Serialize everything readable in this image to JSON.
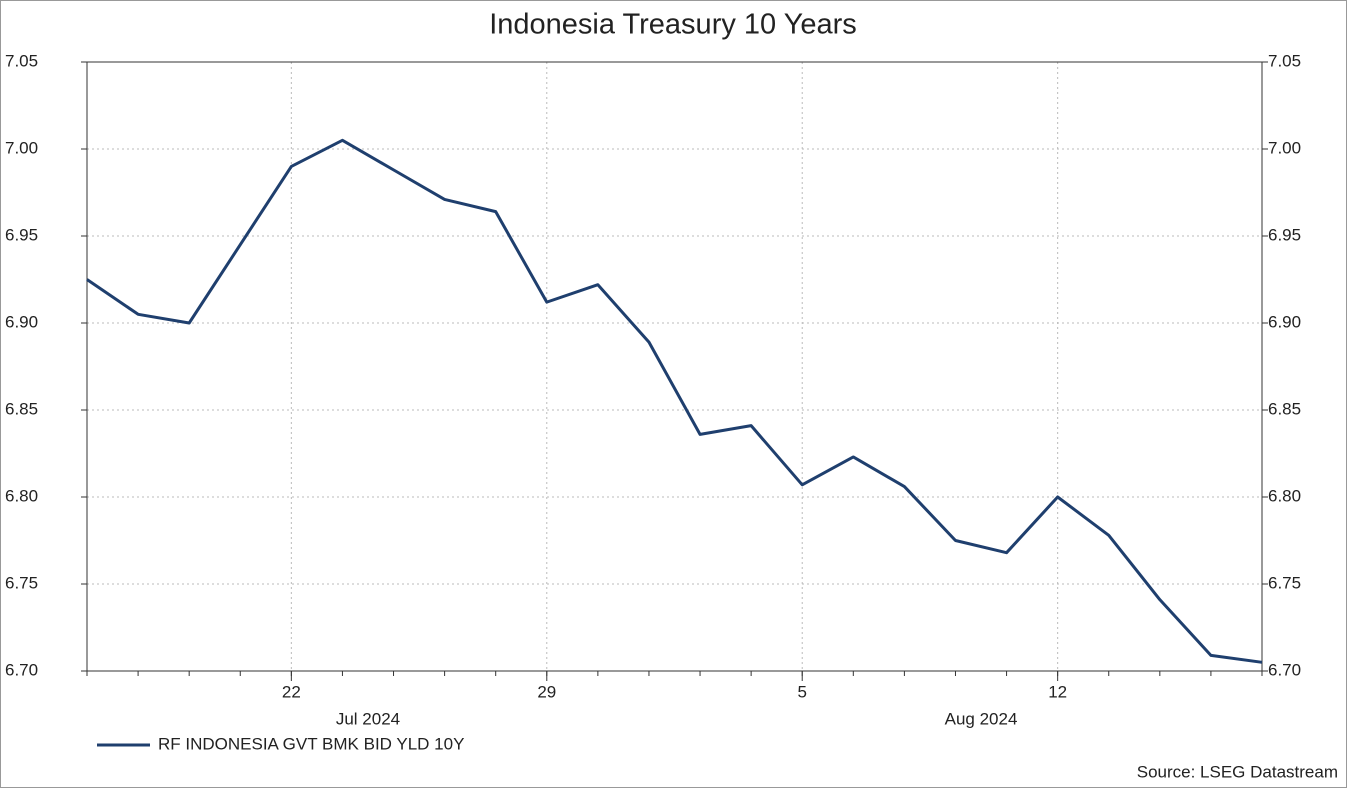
{
  "chart_data": {
    "type": "line",
    "title": "Indonesia Treasury 10 Years",
    "x": [
      "2024-07-16",
      "2024-07-17",
      "2024-07-18",
      "2024-07-19",
      "2024-07-22",
      "2024-07-23",
      "2024-07-24",
      "2024-07-25",
      "2024-07-26",
      "2024-07-29",
      "2024-07-30",
      "2024-07-31",
      "2024-08-01",
      "2024-08-02",
      "2024-08-05",
      "2024-08-06",
      "2024-08-07",
      "2024-08-08",
      "2024-08-09",
      "2024-08-12",
      "2024-08-13",
      "2024-08-14",
      "2024-08-15",
      "2024-08-16"
    ],
    "series": [
      {
        "name": "RF INDONESIA GVT BMK BID YLD 10Y",
        "color": "#1f3f6e",
        "values": [
          6.925,
          6.905,
          6.9,
          6.945,
          6.99,
          7.005,
          6.988,
          6.971,
          6.964,
          6.912,
          6.922,
          6.889,
          6.836,
          6.841,
          6.807,
          6.823,
          6.806,
          6.775,
          6.768,
          6.8,
          6.778,
          6.741,
          6.709,
          6.705
        ]
      }
    ],
    "xlim": [
      "2024-07-16",
      "2024-08-16"
    ],
    "xticks": [
      {
        "value": "2024-07-22",
        "label": "22"
      },
      {
        "value": "2024-07-29",
        "label": "29"
      },
      {
        "value": "2024-08-05",
        "label": "5"
      },
      {
        "value": "2024-08-12",
        "label": "12"
      }
    ],
    "months": [
      {
        "value": "2024-07",
        "label": "Jul 2024"
      },
      {
        "value": "2024-08",
        "label": "Aug 2024"
      }
    ],
    "ylim": [
      6.7,
      7.05
    ],
    "yticks": [
      {
        "value": 6.7,
        "label": "6.70"
      },
      {
        "value": 6.75,
        "label": "6.75"
      },
      {
        "value": 6.8,
        "label": "6.80"
      },
      {
        "value": 6.85,
        "label": "6.85"
      },
      {
        "value": 6.9,
        "label": "6.90"
      },
      {
        "value": 6.95,
        "label": "6.95"
      },
      {
        "value": 7.0,
        "label": "7.00"
      },
      {
        "value": 7.05,
        "label": "7.05"
      }
    ],
    "grid": true,
    "source": "Source: LSEG Datastream"
  }
}
